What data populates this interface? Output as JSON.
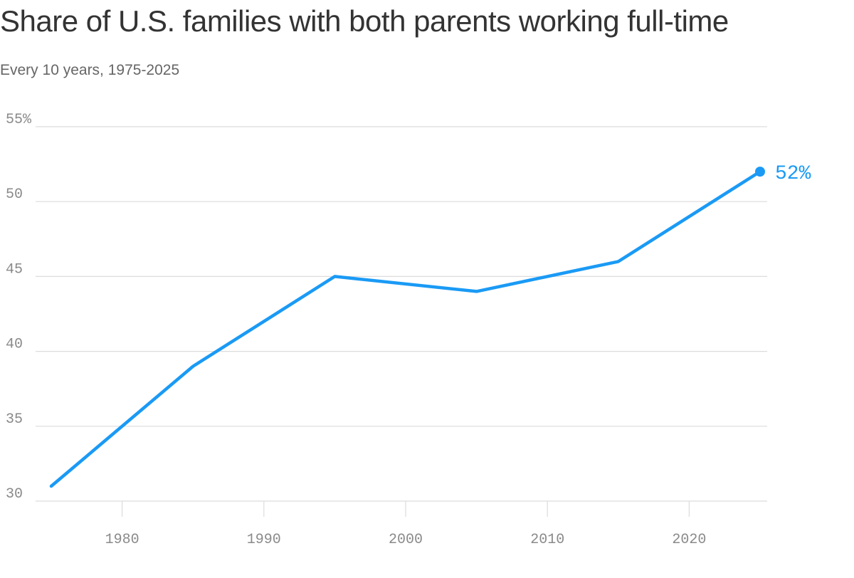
{
  "header": {
    "title": "Share of U.S. families with both parents working full-time",
    "subtitle": "Every 10 years, 1975-2025"
  },
  "chart_data": {
    "type": "line",
    "title": "Share of U.S. families with both parents working full-time",
    "subtitle": "Every 10 years, 1975-2025",
    "xlabel": "",
    "ylabel": "",
    "xlim": [
      1975,
      2025
    ],
    "ylim": [
      30,
      55
    ],
    "x_ticks": [
      1980,
      1990,
      2000,
      2010,
      2020
    ],
    "y_ticks": [
      30,
      35,
      40,
      45,
      50,
      55
    ],
    "y_tick_labels": [
      "30",
      "35",
      "40",
      "45",
      "50",
      "55%"
    ],
    "grid": true,
    "legend": "none",
    "line_color": "#1a9af5",
    "series": [
      {
        "x": [
          1975,
          1985,
          1995,
          2005,
          2015,
          2025
        ],
        "values": [
          31,
          39,
          45,
          44,
          46,
          52
        ]
      }
    ],
    "annotations": [
      {
        "x": 2025,
        "y": 52,
        "text": "52%"
      }
    ]
  }
}
